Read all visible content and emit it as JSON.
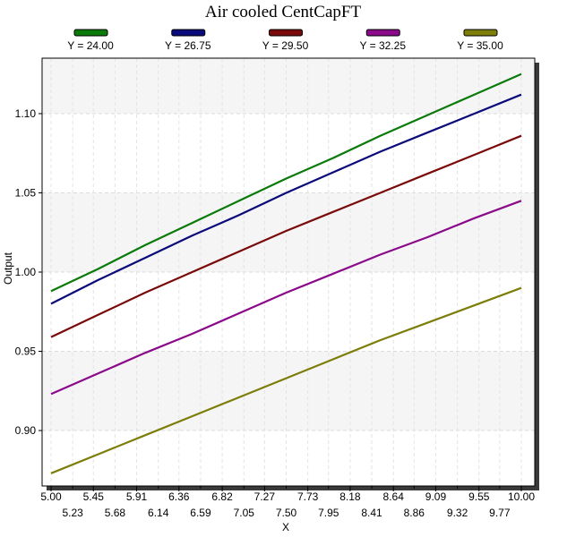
{
  "chart_data": {
    "type": "line",
    "title": "Air cooled CentCapFT",
    "xlabel": "X",
    "ylabel": "Output",
    "xlim": [
      5.0,
      10.0
    ],
    "ylim": [
      0.865,
      1.135
    ],
    "x_ticks_upper": [
      "5.00",
      "5.45",
      "5.91",
      "6.36",
      "6.82",
      "7.27",
      "7.73",
      "8.18",
      "8.64",
      "9.09",
      "9.55",
      "10.00"
    ],
    "x_ticks_lower": [
      "5.23",
      "5.68",
      "6.14",
      "6.59",
      "7.05",
      "7.50",
      "7.95",
      "8.41",
      "8.86",
      "9.32",
      "9.77"
    ],
    "y_ticks": [
      "0.90",
      "0.95",
      "1.00",
      "1.05",
      "1.10"
    ],
    "y_tick_values": [
      0.9,
      0.95,
      1.0,
      1.05,
      1.1
    ],
    "grid": true,
    "legend_position": "top",
    "x": [
      5.0,
      5.5,
      6.0,
      6.5,
      7.0,
      7.5,
      8.0,
      8.5,
      9.0,
      9.5,
      10.0
    ],
    "series": [
      {
        "name": "Y = 24.00",
        "color": "#0a7a0a",
        "values": [
          0.988,
          1.002,
          1.017,
          1.031,
          1.045,
          1.059,
          1.072,
          1.086,
          1.099,
          1.112,
          1.125
        ]
      },
      {
        "name": "Y = 26.75",
        "color": "#0a0a7a",
        "values": [
          0.98,
          0.995,
          1.009,
          1.023,
          1.036,
          1.05,
          1.063,
          1.076,
          1.088,
          1.1,
          1.112
        ]
      },
      {
        "name": "Y = 29.50",
        "color": "#7a0a0a",
        "values": [
          0.959,
          0.973,
          0.987,
          1.0,
          1.013,
          1.026,
          1.038,
          1.05,
          1.062,
          1.074,
          1.086
        ]
      },
      {
        "name": "Y = 32.25",
        "color": "#8a0a8a",
        "values": [
          0.923,
          0.936,
          0.949,
          0.961,
          0.974,
          0.987,
          0.999,
          1.011,
          1.022,
          1.034,
          1.045
        ]
      },
      {
        "name": "Y = 35.00",
        "color": "#7d7d0a",
        "values": [
          0.873,
          0.885,
          0.897,
          0.909,
          0.921,
          0.933,
          0.945,
          0.957,
          0.968,
          0.979,
          0.99
        ]
      }
    ]
  }
}
